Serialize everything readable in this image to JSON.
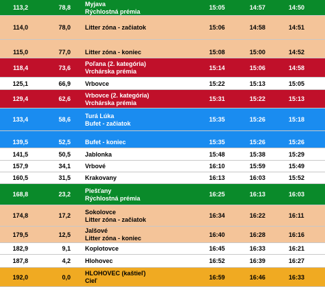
{
  "rows": [
    {
      "km": "113,2",
      "remaining": "78,8",
      "location": [
        "Myjava",
        "Rýchlostná prémia"
      ],
      "t1": "15:05",
      "t2": "14:57",
      "t3": "14:50",
      "style": "green",
      "layout": "split"
    },
    {
      "km": "114,0",
      "remaining": "78,0",
      "location": [
        "Litter zóna - začiatok"
      ],
      "t1": "15:06",
      "t2": "14:58",
      "t3": "14:51",
      "style": "peach",
      "layout": "middle"
    },
    {
      "km": "115,0",
      "remaining": "77,0",
      "location": [
        "Litter zóna - koniec"
      ],
      "t1": "15:08",
      "t2": "15:00",
      "t3": "14:52",
      "style": "peach",
      "layout": "bottom"
    },
    {
      "km": "118,4",
      "remaining": "73,6",
      "location": [
        "Poľana (2. kategória)",
        "Vrchárska prémia"
      ],
      "t1": "15:14",
      "t2": "15:06",
      "t3": "14:58",
      "style": "red",
      "layout": "split"
    },
    {
      "km": "125,1",
      "remaining": "66,9",
      "location": [
        "Vrbovce"
      ],
      "t1": "15:22",
      "t2": "15:13",
      "t3": "15:05",
      "style": "white",
      "layout": "middle"
    },
    {
      "km": "129,4",
      "remaining": "62,6",
      "location": [
        "Vrbovce (2. kategória)",
        "Vrchárska prémia"
      ],
      "t1": "15:31",
      "t2": "15:22",
      "t3": "15:13",
      "style": "red",
      "layout": "split"
    },
    {
      "km": "133,4",
      "remaining": "58,6",
      "location": [
        "Turá Lúka",
        "Bufet - začiatok"
      ],
      "t1": "15:35",
      "t2": "15:26",
      "t3": "15:18",
      "style": "blue",
      "layout": "split"
    },
    {
      "km": "139,5",
      "remaining": "52,5",
      "location": [
        "Bufet - koniec"
      ],
      "t1": "15:35",
      "t2": "15:26",
      "t3": "15:26",
      "style": "blue",
      "layout": "bottom"
    },
    {
      "km": "141,5",
      "remaining": "50,5",
      "location": [
        "Jablonka"
      ],
      "t1": "15:48",
      "t2": "15:38",
      "t3": "15:29",
      "style": "white",
      "layout": "middle"
    },
    {
      "km": "157,9",
      "remaining": "34,1",
      "location": [
        "Vrbové"
      ],
      "t1": "16:10",
      "t2": "15:59",
      "t3": "15:49",
      "style": "white",
      "layout": "middle"
    },
    {
      "km": "160,5",
      "remaining": "31,5",
      "location": [
        "Krakovany"
      ],
      "t1": "16:13",
      "t2": "16:03",
      "t3": "15:52",
      "style": "white",
      "layout": "middle"
    },
    {
      "km": "168,8",
      "remaining": "23,2",
      "location": [
        "Piešťany",
        "Rýchlostná prémia"
      ],
      "t1": "16:25",
      "t2": "16:13",
      "t3": "16:03",
      "style": "green",
      "layout": "split"
    },
    {
      "km": "174,8",
      "remaining": "17,2",
      "location": [
        "Sokolovce",
        "Litter zóna - začiatok"
      ],
      "t1": "16:34",
      "t2": "16:22",
      "t3": "16:11",
      "style": "peach",
      "layout": "split"
    },
    {
      "km": "179,5",
      "remaining": "12,5",
      "location": [
        "Jalšové",
        "Litter zóna - koniec"
      ],
      "t1": "16:40",
      "t2": "16:28",
      "t3": "16:16",
      "style": "peach",
      "layout": "split"
    },
    {
      "km": "182,9",
      "remaining": "9,1",
      "location": [
        "Koplotovce"
      ],
      "t1": "16:45",
      "t2": "16:33",
      "t3": "16:21",
      "style": "white",
      "layout": "middle"
    },
    {
      "km": "187,8",
      "remaining": "4,2",
      "location": [
        "Hlohovec"
      ],
      "t1": "16:52",
      "t2": "16:39",
      "t3": "16:27",
      "style": "white",
      "layout": "middle"
    },
    {
      "km": "192,0",
      "remaining": "0,0",
      "location": [
        "HLOHOVEC (kaštieľ)",
        "Cieľ"
      ],
      "t1": "16:59",
      "t2": "16:46",
      "t3": "16:33",
      "style": "gold",
      "layout": "split"
    }
  ]
}
